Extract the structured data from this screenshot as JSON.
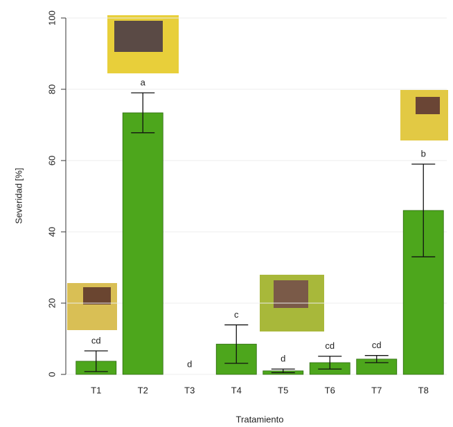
{
  "chart_data": {
    "type": "bar",
    "x_label": "Tratamiento",
    "y_label": "Severidad [%]",
    "categories": [
      "T1",
      "T2",
      "T3",
      "T4",
      "T5",
      "T6",
      "T7",
      "T8"
    ],
    "values": [
      3.7,
      73.4,
      0,
      8.5,
      1.0,
      3.3,
      4.3,
      46.0
    ],
    "errors": [
      2.9,
      5.6,
      0,
      5.4,
      0.5,
      1.8,
      1.0,
      13.0
    ],
    "letters": [
      "cd",
      "a",
      "d",
      "c",
      "d",
      "cd",
      "cd",
      "b"
    ],
    "color": "#4da61c",
    "ylim": [
      0,
      100
    ],
    "yticks": [
      0,
      20,
      40,
      60,
      80,
      100
    ],
    "grid": true
  }
}
